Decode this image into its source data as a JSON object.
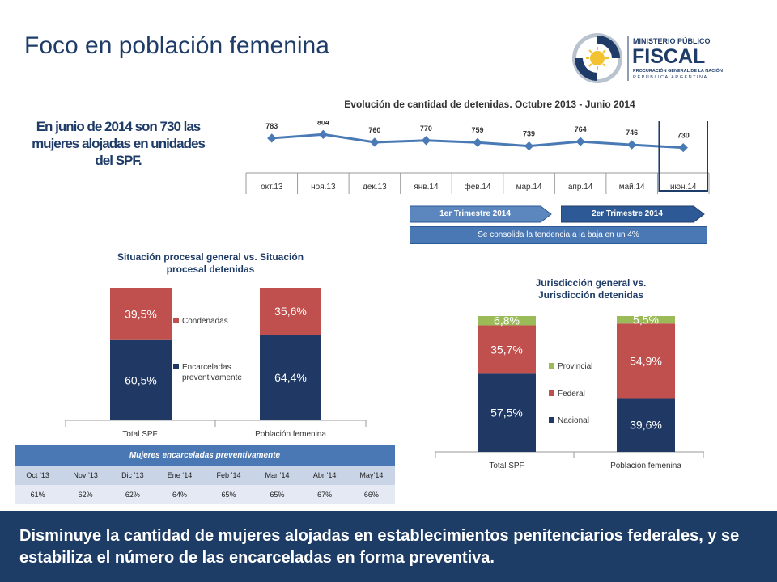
{
  "slide": {
    "title": "Foco en población femenina",
    "highlight": "En junio de 2014 son 730 las mujeres alojadas en unidades del SPF.",
    "footer": "Disminuye la cantidad de mujeres alojadas en establecimientos penitenciarios federales, y se estabiliza el número de las encarceladas en forma preventiva."
  },
  "logo": {
    "line1": "MINISTERIO PÚBLICO",
    "line2": "FISCAL",
    "line3": "PROCURACIÓN GENERAL DE LA NACIÓN",
    "line4": "REPÚBLICA ARGENTINA"
  },
  "annotations": {
    "q1": "1er Trimestre 2014",
    "q2": "2er Trimestre 2014",
    "trend": "Se consolida la tendencia a la baja en un 4%"
  },
  "colors": {
    "navy": "#1f3864",
    "red": "#c0504d",
    "green": "#9bbb59",
    "line": "#4a7ab5",
    "footer": "#1d3d66"
  },
  "chart_data": [
    {
      "type": "line",
      "title": "Evolución de cantidad de detenidas. Octubre 2013 - Junio 2014",
      "categories": [
        "окт.13",
        "ноя.13",
        "дек.13",
        "янв.14",
        "фев.14",
        "мар.14",
        "апр.14",
        "май.14",
        "июн.14"
      ],
      "values": [
        783,
        804,
        760,
        770,
        759,
        739,
        764,
        746,
        730
      ],
      "ylim": [
        400,
        900
      ],
      "grid": false,
      "legend": "none"
    },
    {
      "type": "bar",
      "stacked": true,
      "title": "Situación procesal general vs. Situación procesal detenidas",
      "categories": [
        "Total SPF",
        "Población femenina"
      ],
      "series": [
        {
          "name": "Encarceladas preventivamente",
          "values": [
            60.5,
            64.4
          ],
          "labels": [
            "60,5%",
            "64,4%"
          ]
        },
        {
          "name": "Condenadas",
          "values": [
            39.5,
            35.6
          ],
          "labels": [
            "39,5%",
            "35,6%"
          ]
        }
      ],
      "ylim": [
        0,
        100
      ],
      "legend": "center"
    },
    {
      "type": "bar",
      "stacked": true,
      "title": "Jurisdicción general vs. Jurisdicción detenidas",
      "categories": [
        "Total SPF",
        "Población femenina"
      ],
      "series": [
        {
          "name": "Nacional",
          "values": [
            57.5,
            39.6
          ],
          "labels": [
            "57,5%",
            "39,6%"
          ]
        },
        {
          "name": "Federal",
          "values": [
            35.7,
            54.9
          ],
          "labels": [
            "35,7%",
            "54,9%"
          ]
        },
        {
          "name": "Provincial",
          "values": [
            6.8,
            5.5
          ],
          "labels": [
            "6,8%",
            "5,5%"
          ]
        }
      ],
      "ylim": [
        0,
        100
      ],
      "legend": "center"
    },
    {
      "type": "table",
      "title": "Mujeres encarceladas preventivamente",
      "columns": [
        "Oct ’13",
        "Nov ’13",
        "Dic ’13",
        "Ene ‘14",
        "Feb ’14",
        "Mar ’14",
        "Abr ’14",
        "May’14"
      ],
      "values": [
        "61%",
        "62%",
        "62%",
        "64%",
        "65%",
        "65%",
        "67%",
        "66%"
      ]
    }
  ]
}
